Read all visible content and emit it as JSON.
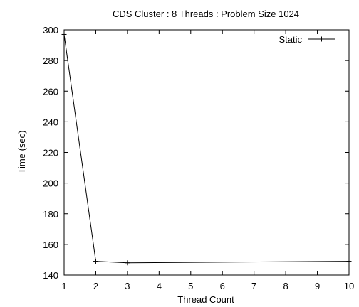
{
  "chart_data": {
    "type": "line",
    "title": "CDS Cluster : 8 Threads : Problem Size 1024",
    "xlabel": "Thread Count",
    "ylabel": "Time (sec)",
    "xlim": [
      1,
      10
    ],
    "ylim": [
      140,
      300
    ],
    "x_ticks": [
      1,
      2,
      3,
      4,
      5,
      6,
      7,
      8,
      9,
      10
    ],
    "y_ticks": [
      140,
      160,
      180,
      200,
      220,
      240,
      260,
      280,
      300
    ],
    "grid": false,
    "legend_position": "top-right",
    "series": [
      {
        "name": "Static",
        "marker": "plus",
        "x": [
          1,
          2,
          3,
          10
        ],
        "y": [
          297,
          149,
          148,
          149
        ]
      }
    ]
  }
}
